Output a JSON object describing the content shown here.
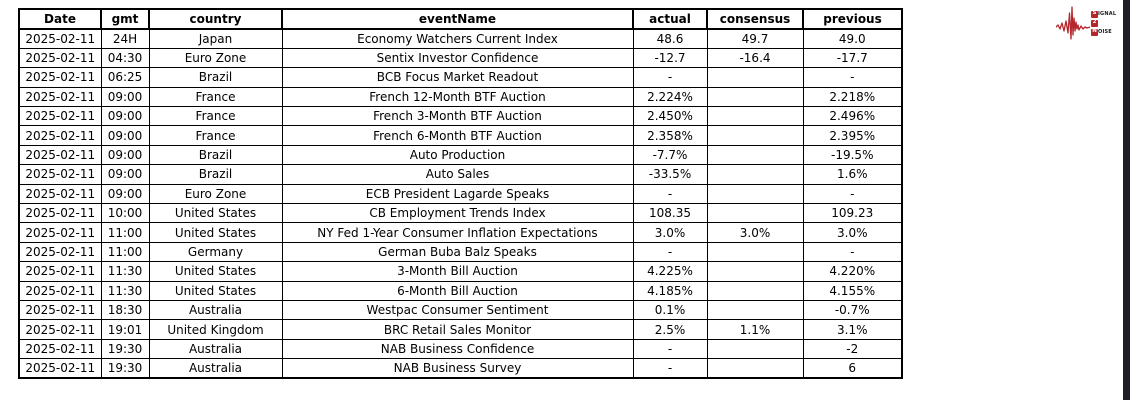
{
  "table": {
    "columns": [
      "Date",
      "gmt",
      "country",
      "eventName",
      "actual",
      "consensus",
      "previous"
    ],
    "rows": [
      [
        "2025-02-11",
        "24H",
        "Japan",
        "Economy Watchers Current Index",
        "48.6",
        "49.7",
        "49.0"
      ],
      [
        "2025-02-11",
        "04:30",
        "Euro Zone",
        "Sentix Investor Confidence",
        "-12.7",
        "-16.4",
        "-17.7"
      ],
      [
        "2025-02-11",
        "06:25",
        "Brazil",
        "BCB Focus Market Readout",
        "-",
        "",
        "-"
      ],
      [
        "2025-02-11",
        "09:00",
        "France",
        "French 12-Month BTF Auction",
        "2.224%",
        "",
        "2.218%"
      ],
      [
        "2025-02-11",
        "09:00",
        "France",
        "French 3-Month BTF Auction",
        "2.450%",
        "",
        "2.496%"
      ],
      [
        "2025-02-11",
        "09:00",
        "France",
        "French 6-Month BTF Auction",
        "2.358%",
        "",
        "2.395%"
      ],
      [
        "2025-02-11",
        "09:00",
        "Brazil",
        "Auto Production",
        "-7.7%",
        "",
        "-19.5%"
      ],
      [
        "2025-02-11",
        "09:00",
        "Brazil",
        "Auto Sales",
        "-33.5%",
        "",
        "1.6%"
      ],
      [
        "2025-02-11",
        "09:00",
        "Euro Zone",
        "ECB President Lagarde Speaks",
        "-",
        "",
        "-"
      ],
      [
        "2025-02-11",
        "10:00",
        "United States",
        "CB Employment Trends Index",
        "108.35",
        "",
        "109.23"
      ],
      [
        "2025-02-11",
        "11:00",
        "United States",
        "NY Fed 1-Year Consumer Inflation Expectations",
        "3.0%",
        "3.0%",
        "3.0%"
      ],
      [
        "2025-02-11",
        "11:00",
        "Germany",
        "German Buba Balz Speaks",
        "-",
        "",
        "-"
      ],
      [
        "2025-02-11",
        "11:30",
        "United States",
        "3-Month Bill Auction",
        "4.225%",
        "",
        "4.220%"
      ],
      [
        "2025-02-11",
        "11:30",
        "United States",
        "6-Month Bill Auction",
        "4.185%",
        "",
        "4.155%"
      ],
      [
        "2025-02-11",
        "18:30",
        "Australia",
        "Westpac Consumer Sentiment",
        "0.1%",
        "",
        "-0.7%"
      ],
      [
        "2025-02-11",
        "19:01",
        "United Kingdom",
        "BRC Retail Sales Monitor",
        "2.5%",
        "1.1%",
        "3.1%"
      ],
      [
        "2025-02-11",
        "19:30",
        "Australia",
        "NAB Business Confidence",
        "-",
        "",
        "-2"
      ],
      [
        "2025-02-11",
        "19:30",
        "Australia",
        "NAB Business Survey",
        "-",
        "",
        "6"
      ]
    ]
  },
  "logo": {
    "signal_initial": "S",
    "signal_rest": "IGNAL",
    "middle": "2",
    "noise_initial": "N",
    "noise_rest": "OISE",
    "accent_color": "#b5252c"
  },
  "colors": {
    "table_border": "#000000",
    "background": "#ffffff",
    "right_strip": "#1e2026"
  }
}
